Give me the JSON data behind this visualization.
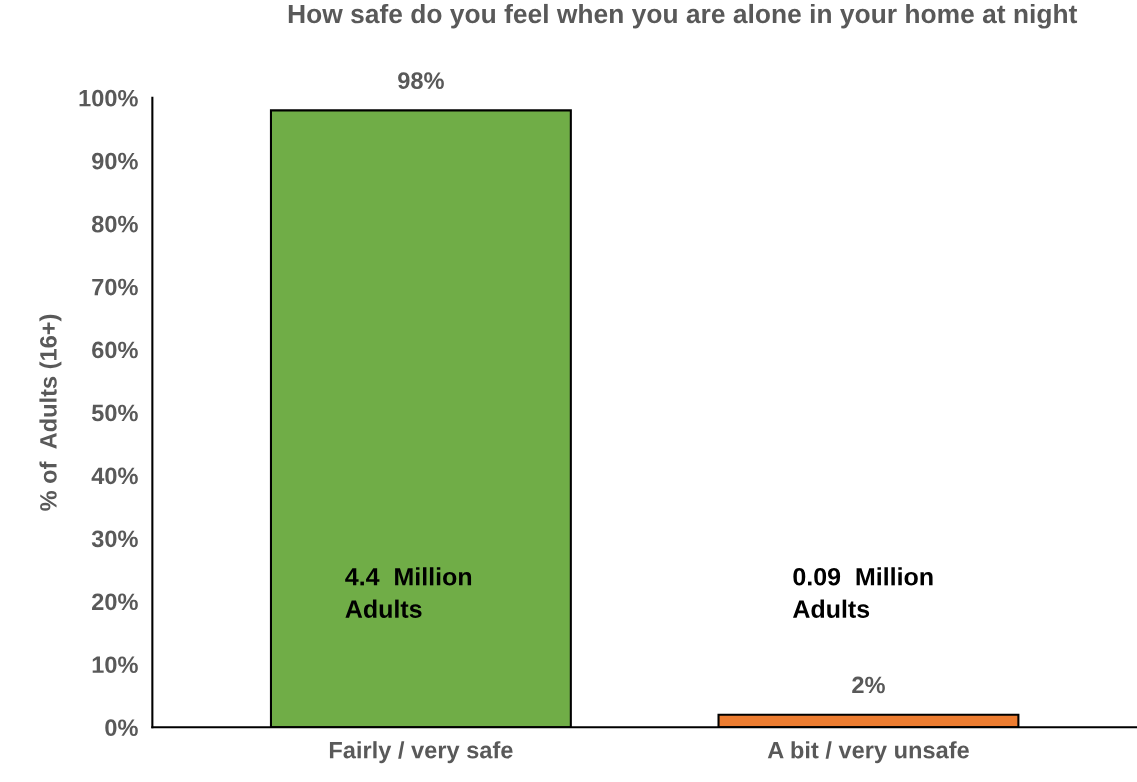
{
  "chart_data": {
    "type": "bar",
    "title": "How safe do you feel when you are alone in your home at night",
    "ylabel": "% of  Adults (16+)",
    "categories": [
      "Fairly / very safe",
      "A bit / very unsafe"
    ],
    "values": [
      98,
      2
    ],
    "colors": [
      "#70ad47",
      "#ed7d31"
    ],
    "value_labels": [
      "98%",
      "2%"
    ],
    "ylim": [
      0,
      100
    ],
    "yticks": [
      {
        "value": 0,
        "label": "0%"
      },
      {
        "value": 10,
        "label": "10%"
      },
      {
        "value": 20,
        "label": "20%"
      },
      {
        "value": 30,
        "label": "30%"
      },
      {
        "value": 40,
        "label": "40%"
      },
      {
        "value": 50,
        "label": "50%"
      },
      {
        "value": 60,
        "label": "60%"
      },
      {
        "value": 70,
        "label": "70%"
      },
      {
        "value": 80,
        "label": "80%"
      },
      {
        "value": 90,
        "label": "90%"
      },
      {
        "value": 100,
        "label": "100%"
      }
    ],
    "annotations": [
      "4.4  Million\nAdults",
      "0.09  Million\nAdults"
    ],
    "grid": false,
    "legend": false
  }
}
